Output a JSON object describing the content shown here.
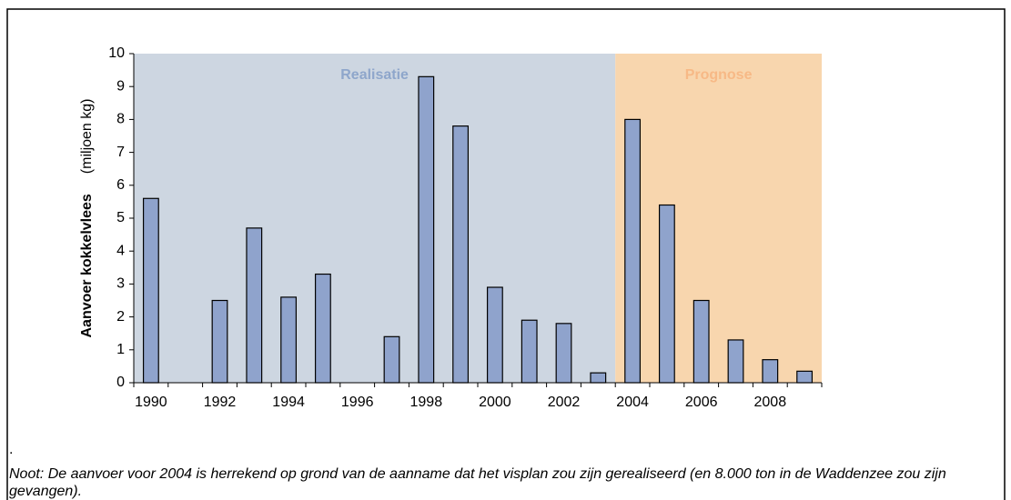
{
  "chart_data": {
    "type": "bar",
    "y_label": "Aanvoer kokkelvlees",
    "y_unit": "(miljoen kg)",
    "categories": [
      "1990",
      null,
      "1992",
      null,
      "1994",
      null,
      "1996",
      null,
      "1998",
      null,
      "2000",
      null,
      "2002",
      null,
      "2004",
      null,
      "2006",
      null,
      "2008",
      null
    ],
    "values": [
      5.6,
      null,
      2.5,
      4.7,
      2.6,
      3.3,
      null,
      1.4,
      9.3,
      7.8,
      2.9,
      1.9,
      1.8,
      0.3,
      8.0,
      5.4,
      2.5,
      1.3,
      0.7,
      0.35
    ],
    "color": "#8fa3cc",
    "ylim": [
      0,
      10
    ],
    "yticks": [
      0,
      1,
      2,
      3,
      4,
      5,
      6,
      7,
      8,
      9,
      10
    ],
    "regions": [
      {
        "label": "Realisatie",
        "color": "#cdd6e1",
        "text_color": "#8ea6cb"
      },
      {
        "label": "Prognose",
        "color": "#f8d6ae",
        "text_color": "#f7b986"
      }
    ],
    "note_marker": ".",
    "note": "Noot: De aanvoer voor 2004 is herrekend op grond van de aanname dat het visplan zou zijn gerealiseerd (en 8.000 ton in de Waddenzee zou zijn gevangen)."
  }
}
